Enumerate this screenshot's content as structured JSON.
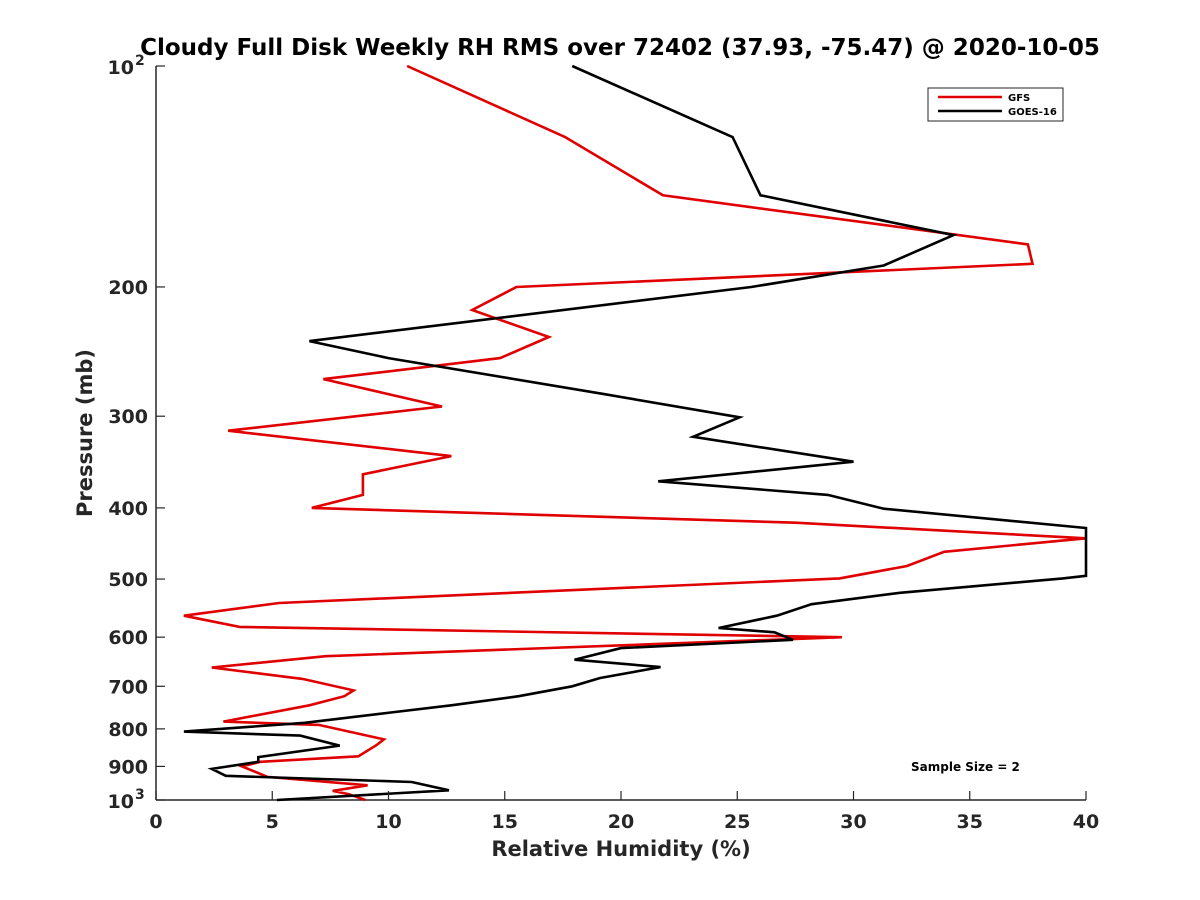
{
  "chart_data": {
    "type": "line",
    "title": "Cloudy Full Disk Weekly RH RMS over 72402 (37.93, -75.47) @ 2020-10-05",
    "xlabel": "Relative Humidity (%)",
    "ylabel": "Pressure (mb)",
    "xlim": [
      0,
      40
    ],
    "ylim": [
      1000,
      100
    ],
    "y_scale": "log",
    "y_reversed": true,
    "grid": false,
    "legend_position": "top-right",
    "x_ticks": [
      "0",
      "5",
      "10",
      "15",
      "20",
      "25",
      "30",
      "35",
      "40"
    ],
    "y_ticks": [
      {
        "value": 100,
        "base": "10",
        "exp": "2"
      },
      {
        "value": 200,
        "label": "200"
      },
      {
        "value": 300,
        "label": "300"
      },
      {
        "value": 400,
        "label": "400"
      },
      {
        "value": 500,
        "label": "500"
      },
      {
        "value": 600,
        "label": "600"
      },
      {
        "value": 700,
        "label": "700"
      },
      {
        "value": 800,
        "label": "800"
      },
      {
        "value": 900,
        "label": "900"
      },
      {
        "value": 1000,
        "base": "10",
        "exp": "3"
      }
    ],
    "series": [
      {
        "name": "GFS",
        "color": "#e00000",
        "points": [
          [
            10.8,
            100
          ],
          [
            17.6,
            125
          ],
          [
            21.8,
            150
          ],
          [
            37.5,
            175
          ],
          [
            37.7,
            186
          ],
          [
            15.5,
            200
          ],
          [
            13.6,
            215
          ],
          [
            16.9,
            234
          ],
          [
            14.8,
            250
          ],
          [
            7.2,
            267
          ],
          [
            12.3,
            291
          ],
          [
            3.1,
            314
          ],
          [
            12.7,
            340
          ],
          [
            8.9,
            360
          ],
          [
            8.9,
            384
          ],
          [
            6.7,
            400
          ],
          [
            27.5,
            419
          ],
          [
            40,
            440
          ],
          [
            33.9,
            459
          ],
          [
            32.3,
            480
          ],
          [
            29.4,
            499
          ],
          [
            5.3,
            539
          ],
          [
            1.2,
            561
          ],
          [
            3.6,
            581
          ],
          [
            29.5,
            600
          ],
          [
            7.3,
            637
          ],
          [
            2.4,
            660
          ],
          [
            6.3,
            684
          ],
          [
            8.5,
            709
          ],
          [
            8.1,
            722
          ],
          [
            6.6,
            743
          ],
          [
            2.9,
            782
          ],
          [
            7.0,
            790
          ],
          [
            9.8,
            827
          ],
          [
            9.5,
            841
          ],
          [
            8.7,
            872
          ],
          [
            4.5,
            887
          ],
          [
            3.7,
            900
          ],
          [
            4.8,
            930
          ],
          [
            9.1,
            955
          ],
          [
            7.6,
            972
          ],
          [
            8.3,
            982
          ],
          [
            9.0,
            1000
          ]
        ]
      },
      {
        "name": "GOES-16",
        "color": "#000000",
        "points": [
          [
            17.9,
            100
          ],
          [
            24.8,
            125
          ],
          [
            26.0,
            150
          ],
          [
            34.3,
            170
          ],
          [
            31.3,
            187
          ],
          [
            25.6,
            200
          ],
          [
            6.6,
            237
          ],
          [
            10.0,
            250
          ],
          [
            19.3,
            280
          ],
          [
            25.1,
            301
          ],
          [
            23.1,
            320
          ],
          [
            30.0,
            346
          ],
          [
            21.6,
            368
          ],
          [
            28.9,
            384
          ],
          [
            31.3,
            401
          ],
          [
            40,
            426
          ],
          [
            40,
            495
          ],
          [
            39.0,
            499
          ],
          [
            32.0,
            522
          ],
          [
            28.2,
            541
          ],
          [
            26.7,
            561
          ],
          [
            24.2,
            583
          ],
          [
            26.6,
            591
          ],
          [
            27.4,
            605
          ],
          [
            20.0,
            621
          ],
          [
            18.0,
            644
          ],
          [
            21.7,
            659
          ],
          [
            19.1,
            682
          ],
          [
            17.9,
            700
          ],
          [
            15.6,
            722
          ],
          [
            12.7,
            743
          ],
          [
            10.1,
            760
          ],
          [
            6.4,
            785
          ],
          [
            1.2,
            807
          ],
          [
            6.2,
            817
          ],
          [
            7.9,
            843
          ],
          [
            4.4,
            874
          ],
          [
            4.4,
            887
          ],
          [
            2.4,
            907
          ],
          [
            3.0,
            927
          ],
          [
            11.0,
            945
          ],
          [
            12.6,
            970
          ],
          [
            5.2,
            1000
          ]
        ]
      }
    ],
    "annotation": "Sample Size = 2"
  }
}
